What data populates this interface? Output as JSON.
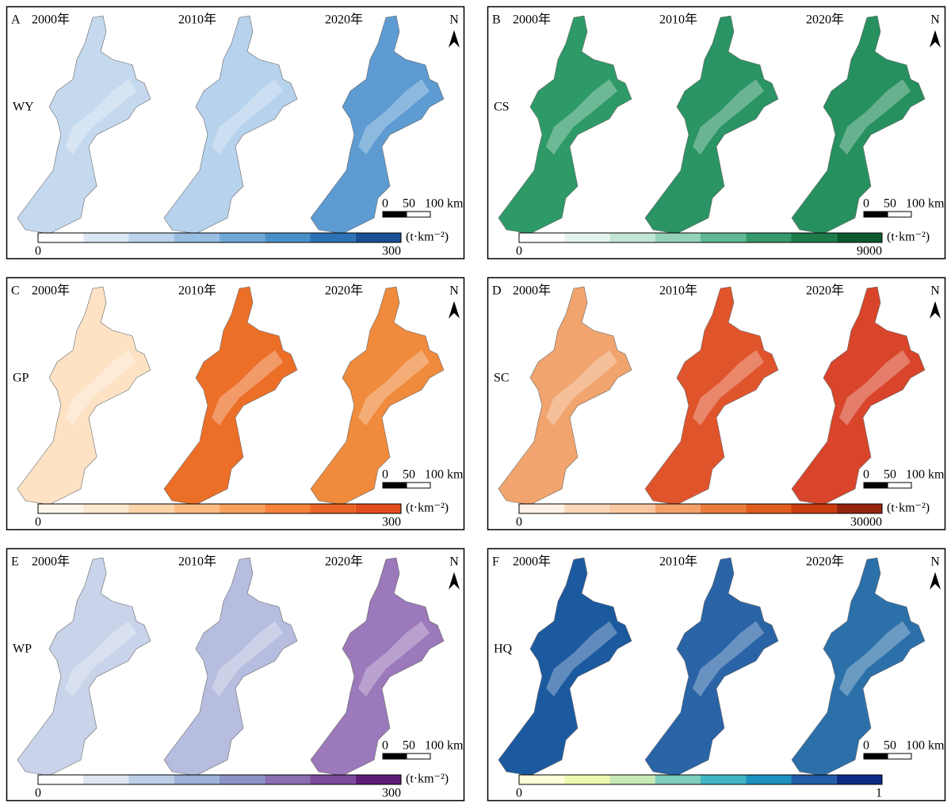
{
  "panels": [
    {
      "letter": "A",
      "years": [
        "2000年",
        "2010年",
        "2020年"
      ],
      "indicator": "WY",
      "north": "N",
      "scale": [
        "0",
        "50",
        "100 km"
      ],
      "legend": {
        "unit": "(t·km⁻²)",
        "min": 0,
        "max": 300,
        "colors": [
          "#ffffff",
          "#dbe7f5",
          "#bcd3ec",
          "#98bfe3",
          "#6ea8d7",
          "#4a90c8",
          "#2d72b6",
          "#1b4f96"
        ]
      },
      "map_colors": [
        "#c5d9ee",
        "#b7d2ec",
        "#5d9bd2"
      ]
    },
    {
      "letter": "B",
      "years": [
        "2000年",
        "2010年",
        "2020年"
      ],
      "indicator": "CS",
      "north": "N",
      "scale": [
        "0",
        "50",
        "100 km"
      ],
      "legend": {
        "unit": "(t·km⁻²)",
        "min": 0,
        "max": 9000,
        "colors": [
          "#ffffff",
          "#e6f4ee",
          "#c3e7d6",
          "#93d2b9",
          "#5fb893",
          "#34996b",
          "#1c7b49",
          "#0b5a2d"
        ]
      },
      "map_colors": [
        "#2e9a68",
        "#2a9464",
        "#27905f"
      ]
    },
    {
      "letter": "C",
      "years": [
        "2000年",
        "2010年",
        "2020年"
      ],
      "indicator": "GP",
      "north": "N",
      "scale": [
        "0",
        "50",
        "100 km"
      ],
      "legend": {
        "unit": "(t·km⁻²)",
        "min": 0,
        "max": 300,
        "colors": [
          "#fff6ea",
          "#fde8cf",
          "#fcd4aa",
          "#fbbb82",
          "#f9a05a",
          "#f6823a",
          "#ec6424",
          "#e14c1a"
        ]
      },
      "map_colors": [
        "#fde2c4",
        "#ec6f28",
        "#f08a3c"
      ]
    },
    {
      "letter": "D",
      "years": [
        "2000年",
        "2010年",
        "2020年"
      ],
      "indicator": "SC",
      "north": "N",
      "scale": [
        "0",
        "50",
        "100 km"
      ],
      "legend": {
        "unit": "(t·km⁻²)",
        "min": 0,
        "max": 30000,
        "colors": [
          "#fff2e6",
          "#fbd7b9",
          "#f9c7a0",
          "#f3a06a",
          "#eb7b3c",
          "#e15d1c",
          "#cc3e10",
          "#96250e"
        ]
      },
      "map_colors": [
        "#f1a46e",
        "#e0542c",
        "#d8452a"
      ]
    },
    {
      "letter": "E",
      "years": [
        "2000年",
        "2010年",
        "2020年"
      ],
      "indicator": "WP",
      "north": "N",
      "scale": [
        "0",
        "50",
        "100 km"
      ],
      "legend": {
        "unit": "(t·km⁻²)",
        "min": 0,
        "max": 300,
        "colors": [
          "#ffffff",
          "#dde6f2",
          "#bccfe6",
          "#9db3d8",
          "#8c93c6",
          "#8a6db3",
          "#7e4a9d",
          "#5e1c78"
        ]
      },
      "map_colors": [
        "#c9d4ea",
        "#b7bddf",
        "#9b79bb"
      ]
    },
    {
      "letter": "F",
      "years": [
        "2000年",
        "2010年",
        "2020年"
      ],
      "indicator": "HQ",
      "north": "N",
      "scale": [
        "0",
        "50",
        "100 km"
      ],
      "legend": {
        "min": 0,
        "max": 1,
        "colors": [
          "#ffffd9",
          "#edf8b1",
          "#c7e9b4",
          "#7fcdbb",
          "#41b6c4",
          "#1d91c0",
          "#225ea8",
          "#0c2c84"
        ]
      },
      "map_colors": [
        "#1c5aa0",
        "#2a64a6",
        "#2c70aa"
      ]
    }
  ]
}
